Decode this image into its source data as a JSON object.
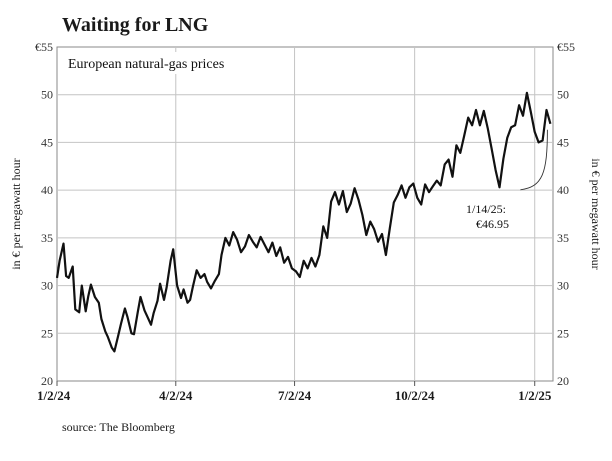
{
  "title": "Waiting for LNG",
  "source": "source: The Bloomberg",
  "chart_data": {
    "type": "line",
    "subtitle": "European natural-gas prices",
    "ylabel": "in € per megawatt hour",
    "ylim": [
      20,
      55
    ],
    "yticks": [
      20,
      25,
      30,
      35,
      40,
      45,
      50,
      55
    ],
    "ytick_labels": [
      "20",
      "25",
      "30",
      "35",
      "40",
      "45",
      "50",
      "€55"
    ],
    "xticks": [
      "2024-01-02",
      "2024-04-02",
      "2024-07-02",
      "2024-10-02",
      "2025-01-02"
    ],
    "xtick_labels": [
      "1/2/24",
      "4/2/24",
      "7/2/24",
      "10/2/24",
      "1/2/25"
    ],
    "xlim": [
      "2024-01-02",
      "2025-01-16"
    ],
    "grid": true,
    "annotation": {
      "x": "2025-01-14",
      "y": 46.95,
      "line1": "1/14/25:",
      "line2": "€46.95"
    },
    "series": [
      {
        "color": "#111111",
        "x": [
          "2024-01-02",
          "2024-01-04",
          "2024-01-07",
          "2024-01-09",
          "2024-01-11",
          "2024-01-14",
          "2024-01-16",
          "2024-01-19",
          "2024-01-21",
          "2024-01-24",
          "2024-01-26",
          "2024-01-28",
          "2024-01-31",
          "2024-02-03",
          "2024-02-05",
          "2024-02-08",
          "2024-02-10",
          "2024-02-13",
          "2024-02-15",
          "2024-02-18",
          "2024-02-20",
          "2024-02-23",
          "2024-02-25",
          "2024-02-28",
          "2024-03-01",
          "2024-03-04",
          "2024-03-06",
          "2024-03-09",
          "2024-03-11",
          "2024-03-14",
          "2024-03-16",
          "2024-03-19",
          "2024-03-21",
          "2024-03-24",
          "2024-03-26",
          "2024-03-29",
          "2024-03-31",
          "2024-04-03",
          "2024-04-06",
          "2024-04-08",
          "2024-04-11",
          "2024-04-13",
          "2024-04-15",
          "2024-04-18",
          "2024-04-21",
          "2024-04-24",
          "2024-04-26",
          "2024-04-29",
          "2024-05-02",
          "2024-05-05",
          "2024-05-07",
          "2024-05-10",
          "2024-05-13",
          "2024-05-16",
          "2024-05-19",
          "2024-05-22",
          "2024-05-25",
          "2024-05-28",
          "2024-05-31",
          "2024-06-03",
          "2024-06-06",
          "2024-06-09",
          "2024-06-12",
          "2024-06-15",
          "2024-06-18",
          "2024-06-21",
          "2024-06-24",
          "2024-06-27",
          "2024-06-30",
          "2024-07-03",
          "2024-07-06",
          "2024-07-09",
          "2024-07-12",
          "2024-07-15",
          "2024-07-18",
          "2024-07-21",
          "2024-07-24",
          "2024-07-27",
          "2024-07-30",
          "2024-08-02",
          "2024-08-05",
          "2024-08-08",
          "2024-08-11",
          "2024-08-14",
          "2024-08-17",
          "2024-08-20",
          "2024-08-23",
          "2024-08-26",
          "2024-08-29",
          "2024-09-01",
          "2024-09-04",
          "2024-09-07",
          "2024-09-10",
          "2024-09-13",
          "2024-09-16",
          "2024-09-19",
          "2024-09-22",
          "2024-09-25",
          "2024-09-28",
          "2024-10-01",
          "2024-10-04",
          "2024-10-07",
          "2024-10-10",
          "2024-10-13",
          "2024-10-16",
          "2024-10-19",
          "2024-10-22",
          "2024-10-25",
          "2024-10-28",
          "2024-10-31",
          "2024-11-03",
          "2024-11-06",
          "2024-11-09",
          "2024-11-12",
          "2024-11-15",
          "2024-11-18",
          "2024-11-21",
          "2024-11-24",
          "2024-11-27",
          "2024-11-30",
          "2024-12-03",
          "2024-12-06",
          "2024-12-09",
          "2024-12-12",
          "2024-12-15",
          "2024-12-18",
          "2024-12-21",
          "2024-12-24",
          "2024-12-27",
          "2024-12-30",
          "2025-01-02",
          "2025-01-05",
          "2025-01-08",
          "2025-01-11",
          "2025-01-14"
        ],
        "values": [
          30.8,
          32.6,
          34.4,
          31.0,
          30.8,
          32.0,
          27.5,
          27.2,
          30.0,
          27.3,
          28.9,
          30.1,
          28.8,
          28.2,
          26.5,
          25.2,
          24.6,
          23.5,
          23.1,
          24.8,
          26.0,
          27.6,
          26.7,
          25.0,
          24.9,
          27.3,
          28.8,
          27.4,
          26.8,
          25.9,
          27.1,
          28.4,
          30.2,
          28.5,
          29.8,
          32.6,
          33.8,
          30.0,
          28.7,
          29.6,
          28.2,
          28.5,
          29.8,
          31.6,
          30.8,
          31.2,
          30.4,
          29.7,
          30.5,
          31.2,
          33.2,
          35.0,
          34.2,
          35.6,
          34.8,
          33.5,
          34.1,
          35.3,
          34.6,
          34.0,
          35.1,
          34.3,
          33.5,
          34.5,
          33.1,
          34.0,
          32.4,
          33.0,
          31.8,
          31.5,
          30.9,
          32.6,
          31.8,
          32.9,
          32.0,
          33.2,
          36.2,
          35.0,
          38.8,
          39.8,
          38.5,
          39.9,
          37.7,
          38.6,
          40.2,
          39.0,
          37.4,
          35.3,
          36.7,
          35.9,
          34.6,
          35.4,
          33.2,
          36.0,
          38.7,
          39.5,
          40.5,
          39.2,
          40.3,
          40.7,
          39.2,
          38.5,
          40.6,
          39.8,
          40.4,
          41.0,
          40.5,
          42.7,
          43.2,
          41.4,
          44.7,
          43.9,
          45.7,
          47.6,
          46.8,
          48.4,
          46.8,
          48.3,
          46.5,
          44.3,
          42.1,
          40.3,
          43.3,
          45.5,
          46.6,
          46.8,
          48.9,
          47.8,
          50.2,
          48.2,
          46.1,
          45.0,
          45.2,
          48.4,
          46.95
        ]
      }
    ]
  }
}
